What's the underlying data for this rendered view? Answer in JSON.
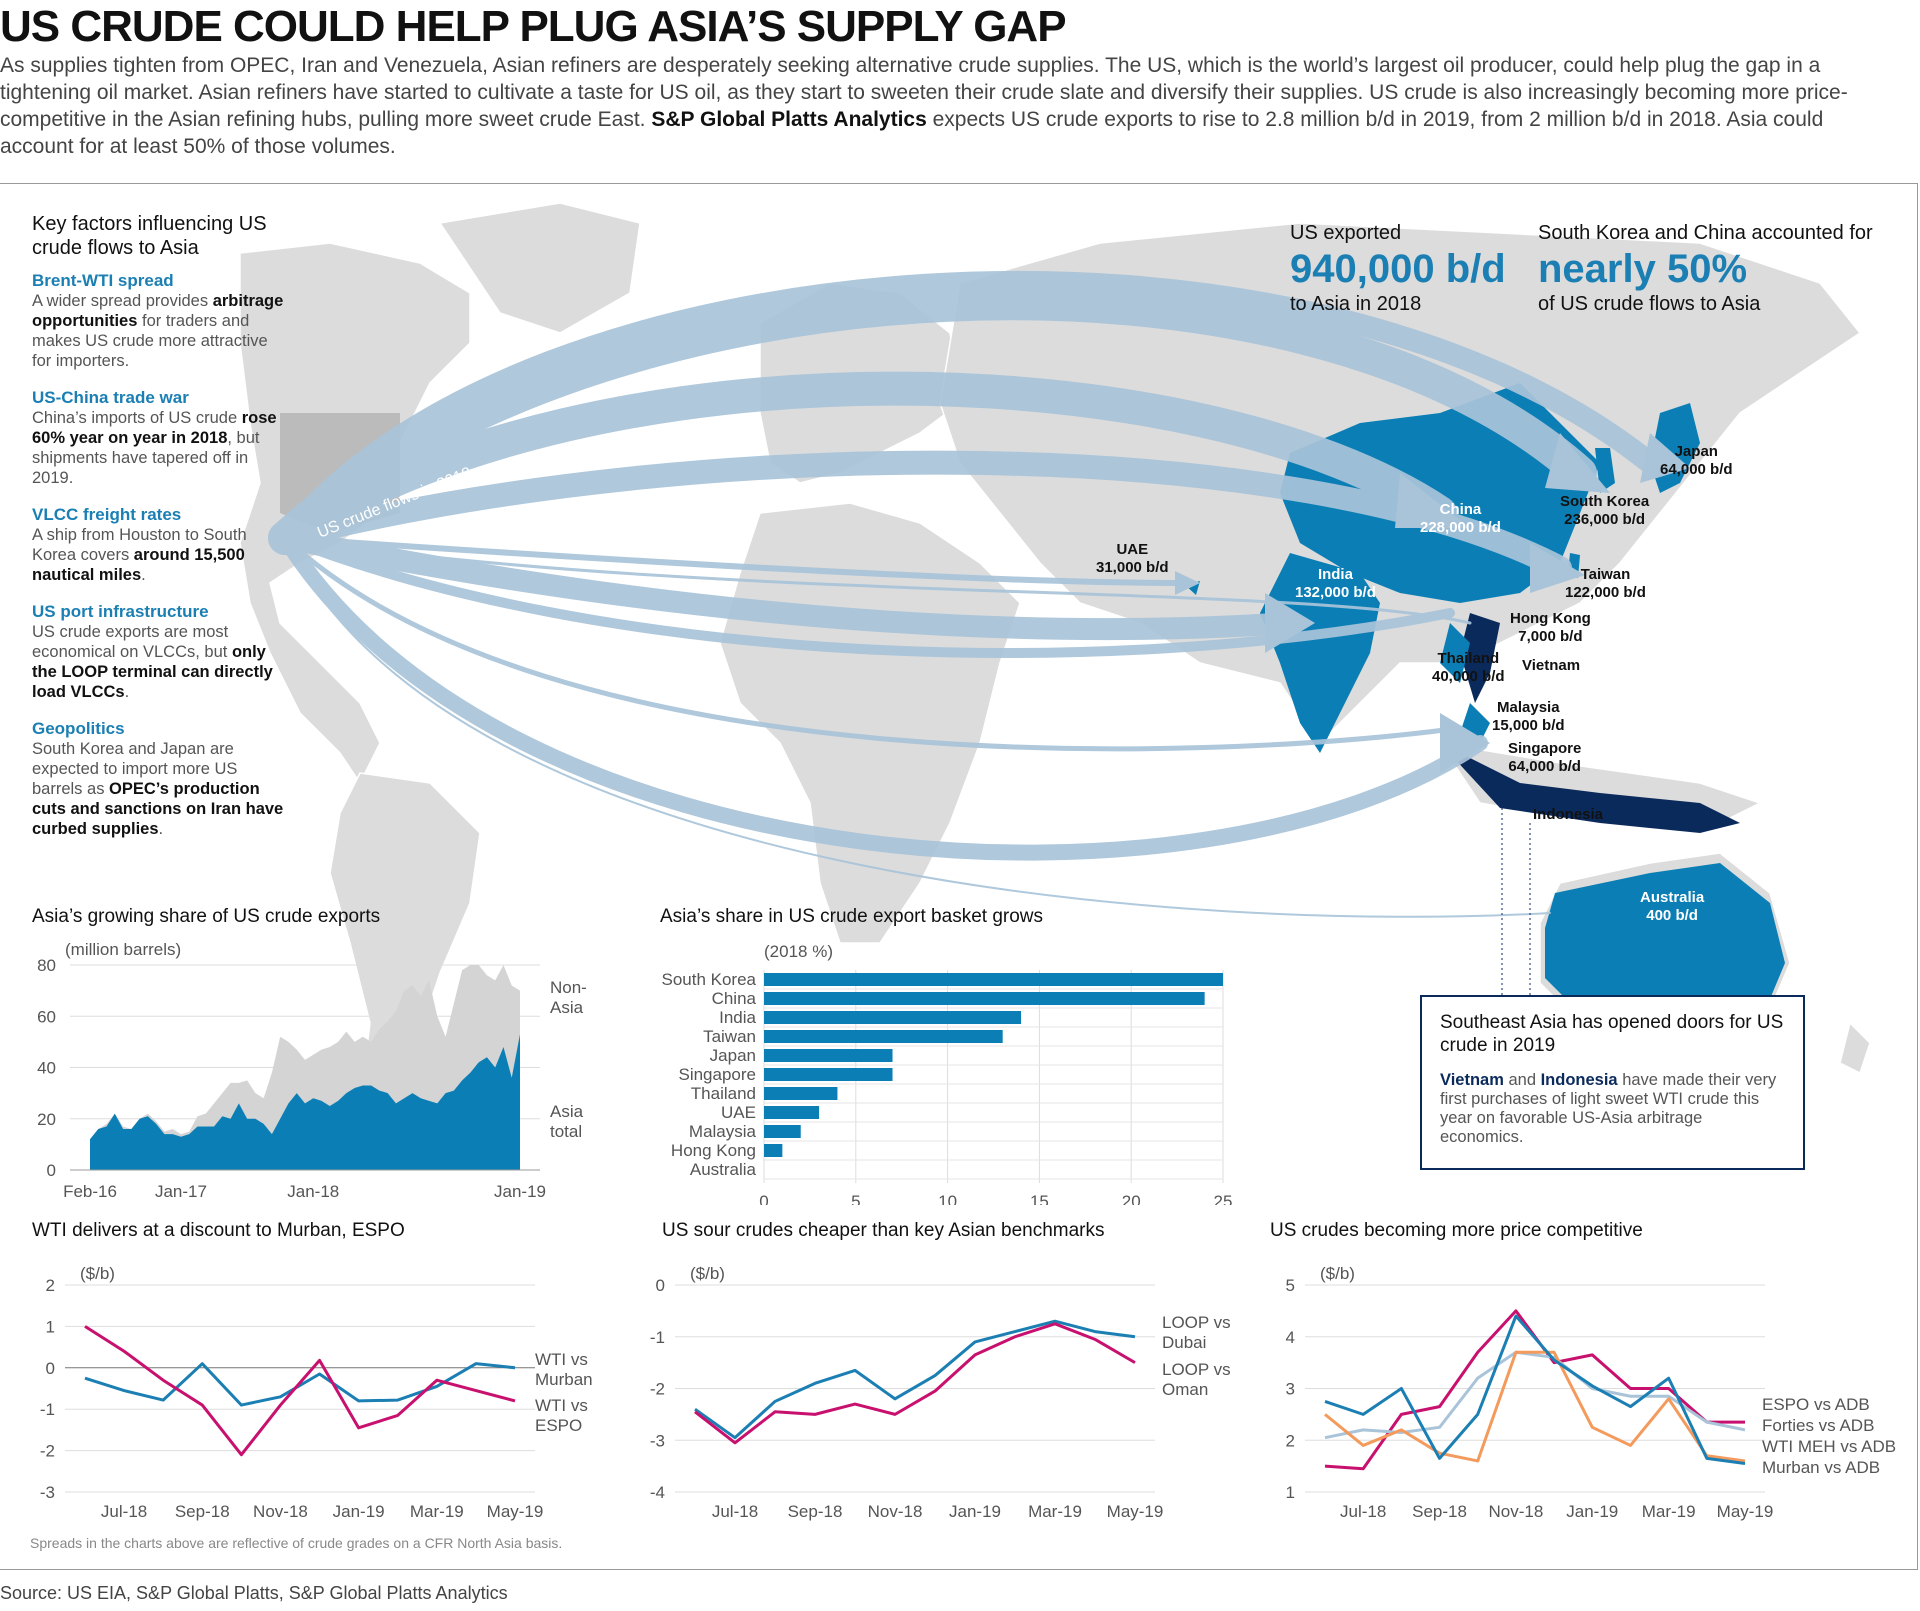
{
  "title": "US CRUDE COULD HELP PLUG ASIA’S SUPPLY GAP",
  "intro": {
    "part1": "As supplies tighten from OPEC, Iran and Venezuela, Asian refiners are desperately seeking alternative crude supplies. The US, which is the world’s largest oil producer, could help plug the gap in a tightening oil market. Asian refiners have started to cultivate a taste for US oil, as they start to sweeten their crude slate and diversify their supplies. US crude is also increasingly becoming more price-competitive in the Asian refining hubs, pulling more sweet crude East. ",
    "bold": "S&P Global Platts Analytics",
    "part2": " expects US crude exports to rise to 2.8 million b/d in 2019, from 2 million b/d in 2018. Asia could account for at least 50% of those volumes."
  },
  "key_factors": {
    "title": "Key factors influencing US crude flows to Asia",
    "items": [
      {
        "head": "Brent-WTI spread",
        "t1": "A wider spread provides ",
        "b": "arbitrage opportunities",
        "t2": " for traders and makes US crude more attractive for importers."
      },
      {
        "head": "US-China trade war",
        "t1": "China’s imports of US crude ",
        "b": "rose 60% year on year in 2018",
        "t2": ", but shipments have tapered off in 2019."
      },
      {
        "head": "VLCC freight rates",
        "t1": "A ship from Houston to South Korea covers ",
        "b": "around 15,500 nautical miles",
        "t2": "."
      },
      {
        "head": "US port infrastructure",
        "t1": "US crude exports are most economical on VLCCs, but ",
        "b": "only the LOOP terminal can directly load VLCCs",
        "t2": "."
      },
      {
        "head": "Geopolitics",
        "t1": "South Korea and Japan are expected to import more US barrels as ",
        "b": "OPEC’s production cuts and sanctions on Iran have curbed supplies",
        "t2": "."
      }
    ]
  },
  "stat1": {
    "pre": "US exported",
    "big": "940,000 b/d",
    "post": "to Asia in 2018"
  },
  "stat2": {
    "pre": "South Korea and China accounted for",
    "big": "nearly 50%",
    "post": "of US crude flows to Asia"
  },
  "flows_label": "US crude flows in 2018",
  "destinations": [
    {
      "name": "Japan",
      "value": "64,000 b/d"
    },
    {
      "name": "South Korea",
      "value": "236,000 b/d"
    },
    {
      "name": "China",
      "value": "228,000 b/d"
    },
    {
      "name": "Taiwan",
      "value": "122,000 b/d"
    },
    {
      "name": "India",
      "value": "132,000 b/d"
    },
    {
      "name": "UAE",
      "value": "31,000 b/d"
    },
    {
      "name": "Hong Kong",
      "value": "7,000 b/d"
    },
    {
      "name": "Thailand",
      "value": "40,000 b/d"
    },
    {
      "name": "Vietnam",
      "value": ""
    },
    {
      "name": "Malaysia",
      "value": "15,000 b/d"
    },
    {
      "name": "Singapore",
      "value": "64,000 b/d"
    },
    {
      "name": "Indonesia",
      "value": ""
    },
    {
      "name": "Australia",
      "value": "400 b/d"
    }
  ],
  "southeast_asia": {
    "title": "Southeast Asia has opened doors for US crude in 2019",
    "vietnam": "Vietnam",
    "and": " and ",
    "indonesia": "Indonesia",
    "rest": " have made their very first purchases of light sweet WTI crude this year on favorable US-Asia arbitrage economics."
  },
  "colors": {
    "blue": "#0b7fb5",
    "navy": "#0b2a5c",
    "magenta": "#c8106e",
    "teal": "#1b7fb3",
    "orange": "#f39a5c",
    "lightblue": "#a9c4d9",
    "land": "#dcdcdc"
  },
  "chart_data": [
    {
      "type": "area",
      "title": "Asia’s growing share of US crude exports",
      "unit_label": "(million barrels)",
      "x_ticks": [
        "Feb-16",
        "Jan-17",
        "Jan-18",
        "Jan-19"
      ],
      "ylim": [
        0,
        80
      ],
      "y_ticks": [
        0,
        20,
        40,
        60,
        80
      ],
      "series": [
        {
          "name": "Non-Asia",
          "values": [
            12,
            16,
            18,
            22,
            17,
            16,
            20,
            22,
            19,
            15,
            16,
            14,
            15,
            21,
            22,
            26,
            30,
            34,
            34,
            35,
            30,
            28,
            38,
            52,
            50,
            47,
            43,
            45,
            47,
            48,
            50,
            54,
            50,
            52,
            50,
            55,
            58,
            62,
            70,
            72,
            68,
            74,
            60,
            52,
            65,
            78,
            80,
            80,
            76,
            74,
            80,
            72,
            70
          ]
        },
        {
          "name": "Asia total",
          "values": [
            12,
            16,
            17,
            22,
            16,
            16,
            20,
            21,
            18,
            14,
            14,
            13,
            14,
            17,
            17,
            17,
            21,
            20,
            26,
            20,
            20,
            18,
            14,
            20,
            26,
            30,
            26,
            28,
            27,
            25,
            27,
            30,
            32,
            33,
            33,
            31,
            30,
            26,
            28,
            30,
            28,
            27,
            26,
            30,
            31,
            35,
            38,
            42,
            44,
            40,
            48,
            36,
            53
          ]
        }
      ]
    },
    {
      "type": "bar",
      "title": "Asia’s share in US crude export basket grows",
      "unit_label": "(2018 %)",
      "categories": [
        "South Korea",
        "China",
        "India",
        "Taiwan",
        "Japan",
        "Singapore",
        "Thailand",
        "UAE",
        "Malaysia",
        "Hong Kong",
        "Australia"
      ],
      "values": [
        25,
        24,
        14,
        13,
        7,
        7,
        4,
        3,
        2,
        1,
        0
      ],
      "xlim": [
        0,
        25
      ],
      "x_ticks": [
        0,
        5,
        10,
        15,
        20,
        25
      ]
    },
    {
      "type": "line",
      "title": "WTI delivers at a discount to Murban, ESPO",
      "unit_label": "($/b)",
      "x_ticks": [
        "Jul-18",
        "Sep-18",
        "Nov-18",
        "Jan-19",
        "Mar-19",
        "May-19"
      ],
      "ylim": [
        -3,
        2
      ],
      "y_ticks": [
        2,
        1,
        0,
        -1,
        -2,
        -3
      ],
      "series": [
        {
          "name": "WTI vs Murban",
          "color": "#1b7fb3",
          "values": [
            -0.25,
            -0.55,
            -0.78,
            0.1,
            -0.9,
            -0.7,
            -0.15,
            -0.8,
            -0.78,
            -0.45,
            0.1,
            0.0
          ]
        },
        {
          "name": "WTI vs ESPO",
          "color": "#c8106e",
          "values": [
            1.0,
            0.4,
            -0.3,
            -0.9,
            -2.1,
            -0.9,
            0.18,
            -1.45,
            -1.15,
            -0.3,
            -0.55,
            -0.8
          ]
        }
      ]
    },
    {
      "type": "line",
      "title": "US sour crudes cheaper than key Asian benchmarks",
      "unit_label": "($/b)",
      "x_ticks": [
        "Jul-18",
        "Sep-18",
        "Nov-18",
        "Jan-19",
        "Mar-19",
        "May-19"
      ],
      "ylim": [
        -4,
        0
      ],
      "y_ticks": [
        0,
        -1,
        -2,
        -3,
        -4
      ],
      "series": [
        {
          "name": "LOOP vs Dubai",
          "color": "#1b7fb3",
          "values": [
            -2.4,
            -2.95,
            -2.25,
            -1.9,
            -1.65,
            -2.2,
            -1.75,
            -1.1,
            -0.9,
            -0.7,
            -0.9,
            -1.0
          ]
        },
        {
          "name": "LOOP vs Oman",
          "color": "#c8106e",
          "values": [
            -2.45,
            -3.05,
            -2.45,
            -2.5,
            -2.3,
            -2.5,
            -2.05,
            -1.35,
            -1.0,
            -0.75,
            -1.05,
            -1.5
          ]
        }
      ]
    },
    {
      "type": "line",
      "title": "US crudes becoming more price competitive",
      "unit_label": "($/b)",
      "x_ticks": [
        "Jul-18",
        "Sep-18",
        "Nov-18",
        "Jan-19",
        "Mar-19",
        "May-19"
      ],
      "ylim": [
        1,
        5
      ],
      "y_ticks": [
        5,
        4,
        3,
        2,
        1
      ],
      "series": [
        {
          "name": "ESPO vs ADB",
          "color": "#c8106e",
          "values": [
            1.5,
            1.45,
            2.5,
            2.65,
            3.7,
            4.5,
            3.5,
            3.65,
            3.0,
            3.0,
            2.35,
            2.35
          ]
        },
        {
          "name": "Forties vs ADB",
          "color": "#a9c4d9",
          "values": [
            2.05,
            2.2,
            2.15,
            2.25,
            3.2,
            3.7,
            3.6,
            3.0,
            2.85,
            2.85,
            2.35,
            2.2
          ]
        },
        {
          "name": "WTI MEH vs ADB",
          "color": "#f39a5c",
          "values": [
            2.5,
            1.9,
            2.2,
            1.75,
            1.6,
            3.7,
            3.7,
            2.25,
            1.9,
            2.8,
            1.7,
            1.6
          ]
        },
        {
          "name": "Murban vs ADB",
          "color": "#1b7fb3",
          "values": [
            2.75,
            2.5,
            3.0,
            1.65,
            2.5,
            4.4,
            3.55,
            3.05,
            2.65,
            3.2,
            1.65,
            1.55
          ]
        }
      ]
    }
  ],
  "chart_titles": {
    "c1": "Asia’s growing share of US crude exports",
    "c2": "Asia’s share in US crude export basket grows",
    "c3": "WTI delivers at a discount to Murban, ESPO",
    "c4": "US sour crudes cheaper than key Asian benchmarks",
    "c5": "US crudes becoming more price competitive"
  },
  "note": "Spreads in the charts above are reflective of crude grades on a CFR North Asia basis.",
  "source": "Source: US EIA, S&P Global Platts, S&P Global Platts Analytics"
}
